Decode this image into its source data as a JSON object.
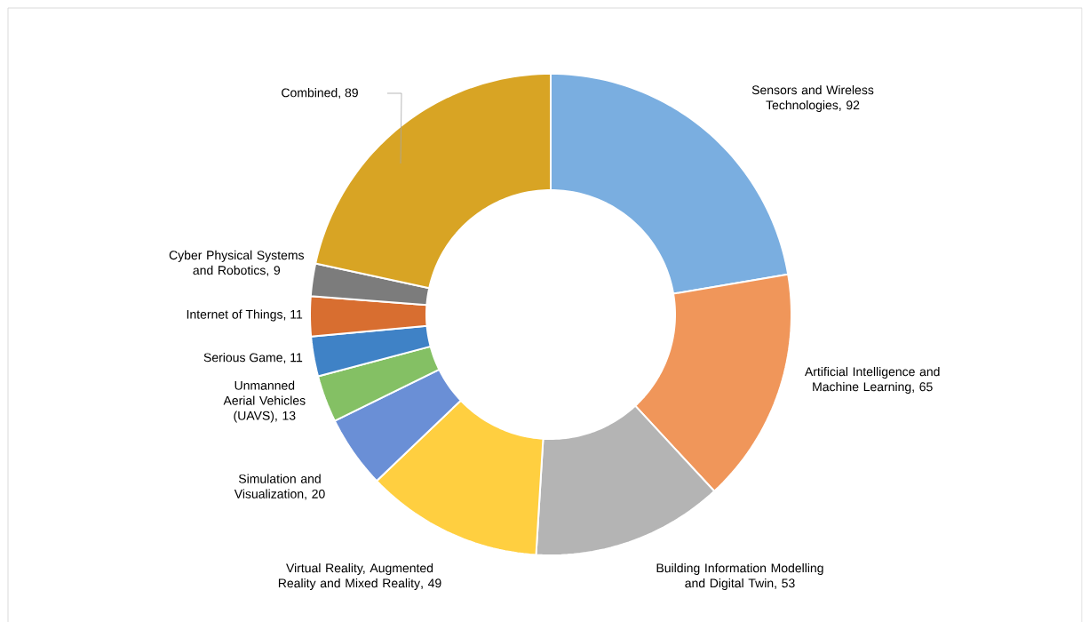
{
  "chart_data": {
    "type": "donut",
    "categories": [
      "Sensors and Wireless Technologies",
      "Artificial Intelligence and Machine Learning",
      "Building Information Modelling and Digital Twin",
      "Virtual Reality, Augmented Reality and Mixed Reality",
      "Simulation and Visualization",
      "Unmanned Aerial Vehicles (UAVS)",
      "Serious Game",
      "Internet of Things",
      "Cyber Physical Systems and Robotics",
      "Combined"
    ],
    "values": [
      92,
      65,
      53,
      49,
      20,
      13,
      11,
      11,
      9,
      89
    ],
    "colors": [
      "#7aaee0",
      "#f0965a",
      "#b4b4b4",
      "#ffcf40",
      "#6a8fd6",
      "#84c064",
      "#3f82c6",
      "#d86e30",
      "#7c7c7c",
      "#d8a424"
    ],
    "value_labels": [
      ", 92",
      ", 65",
      ", 53",
      ", 49",
      ", 20",
      ", 13",
      ", 11",
      ", 11",
      ", 9",
      ", 89"
    ]
  }
}
